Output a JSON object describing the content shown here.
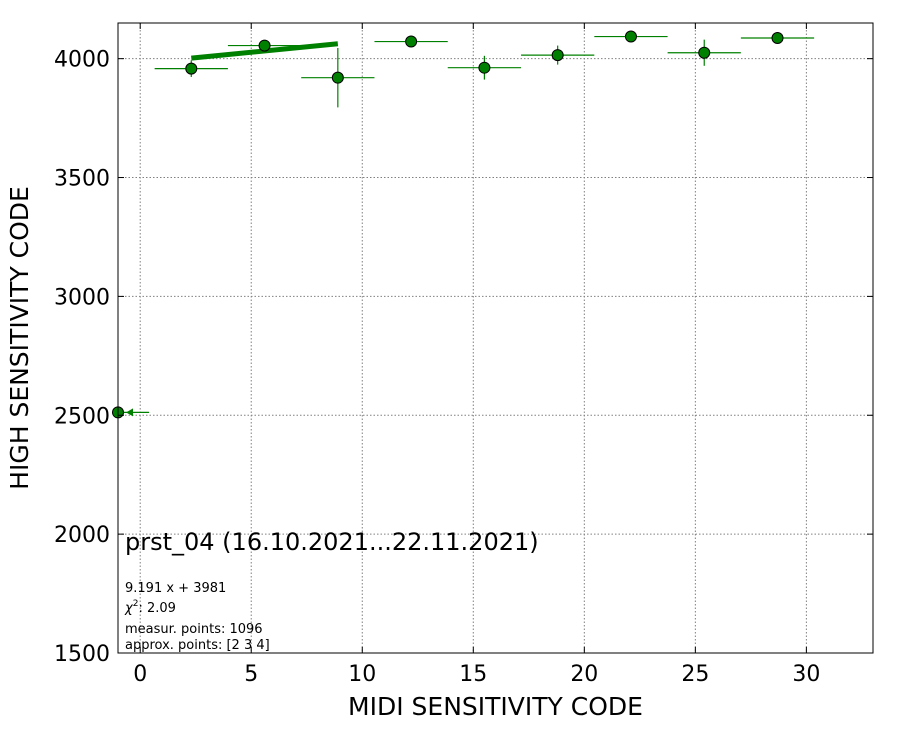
{
  "chart_data": {
    "type": "scatter",
    "title": "",
    "xlabel": "MIDI SENSITIVITY CODE",
    "ylabel": "HIGH SENSITIVITY CODE",
    "xlim": [
      -1,
      33
    ],
    "ylim": [
      1500,
      4150
    ],
    "x_ticks": [
      0,
      5,
      10,
      15,
      20,
      25,
      30
    ],
    "y_ticks": [
      1500,
      2000,
      2500,
      3000,
      3500,
      4000
    ],
    "grid": true,
    "marker_color": "#008000",
    "points": [
      {
        "x": 2.3,
        "y": 3958,
        "xerr": 1.65,
        "yerr": 35
      },
      {
        "x": 5.6,
        "y": 4055,
        "xerr": 1.65,
        "yerr": 12
      },
      {
        "x": 8.9,
        "y": 3920,
        "xerr": 1.65,
        "yerr": 125
      },
      {
        "x": 12.2,
        "y": 4072,
        "xerr": 1.65,
        "yerr": 5
      },
      {
        "x": 15.5,
        "y": 3962,
        "xerr": 1.65,
        "yerr": 50
      },
      {
        "x": 18.8,
        "y": 4015,
        "xerr": 1.65,
        "yerr": 40
      },
      {
        "x": 22.1,
        "y": 4093,
        "xerr": 1.65,
        "yerr": 5
      },
      {
        "x": 25.4,
        "y": 4025,
        "xerr": 1.65,
        "yerr": 55
      },
      {
        "x": 28.7,
        "y": 4087,
        "xerr": 1.65,
        "yerr": 5
      }
    ],
    "outlier": {
      "x": -1,
      "y": 2512,
      "xerr": 0.7,
      "arrow": "left"
    },
    "fit_line": {
      "x_start": 2.3,
      "x_end": 8.9,
      "slope": 9.191,
      "intercept": 3981
    },
    "annotation": {
      "title": "prst_04 (16.10.2021...22.11.2021)",
      "equation": "9.191 x + 3981",
      "chi2_symbol": "χ",
      "chi2_sup": "2",
      "chi2_value": ": 2.09",
      "measur_points": "measur. points: 1096",
      "approx_points": "approx. points: [2 3 4]"
    }
  }
}
